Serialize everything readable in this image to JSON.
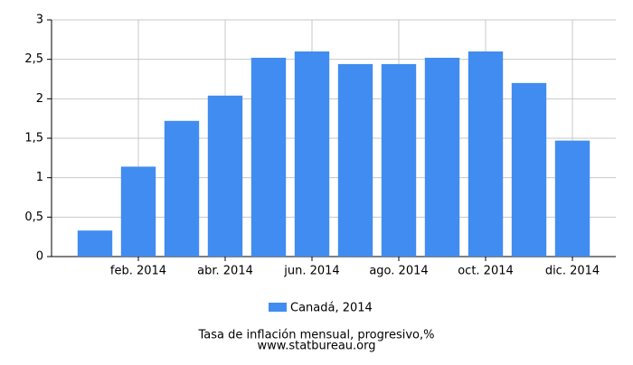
{
  "chart_data": {
    "type": "bar",
    "title": "Tasa de inflación mensual, progresivo,%",
    "source": "www.statbureau.org",
    "categories": [
      null,
      "feb. 2014",
      null,
      "abr. 2014",
      null,
      "jun. 2014",
      null,
      "ago. 2014",
      null,
      "oct. 2014",
      null,
      "dic. 2014"
    ],
    "series": [
      {
        "name": "Canadá, 2014",
        "color": "#418cf0",
        "values": [
          0.33,
          1.14,
          1.72,
          2.04,
          2.52,
          2.6,
          2.44,
          2.44,
          2.52,
          2.6,
          2.2,
          1.47
        ]
      }
    ],
    "ylim": [
      0,
      3
    ],
    "yticks": [
      0,
      {
        "value": 0.5,
        "label": "0,5"
      },
      1,
      {
        "value": 1.5,
        "label": "1,5"
      },
      2,
      {
        "value": 2.5,
        "label": "2,5"
      },
      3
    ],
    "grid": true
  }
}
